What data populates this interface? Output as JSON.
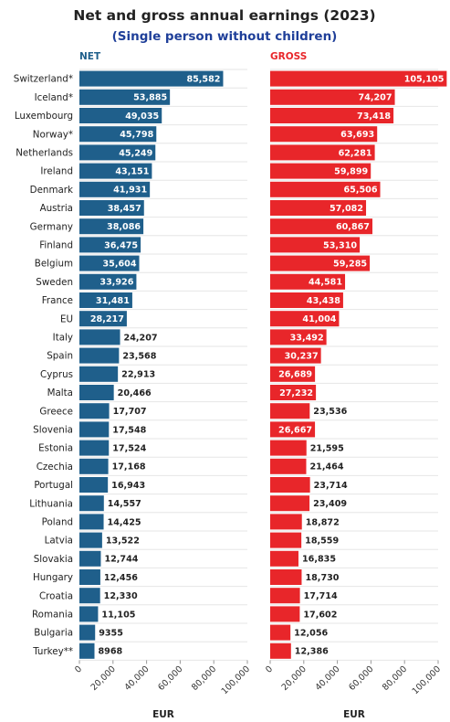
{
  "title": "Net and gross annual earnings (2023)",
  "subtitle": "(Single person without children)",
  "colors": {
    "net": "#1f5f8b",
    "gross": "#e8262a",
    "title": "#222222",
    "subtitle": "#1f3f99"
  },
  "chart_data": {
    "type": "bar",
    "orientation": "horizontal",
    "categories": [
      "Switzerland*",
      "Iceland*",
      "Luxembourg",
      "Norway*",
      "Netherlands",
      "Ireland",
      "Denmark",
      "Austria",
      "Germany",
      "Finland",
      "Belgium",
      "Sweden",
      "France",
      "EU",
      "Italy",
      "Spain",
      "Cyprus",
      "Malta",
      "Greece",
      "Slovenia",
      "Estonia",
      "Czechia",
      "Portugal",
      "Lithuania",
      "Poland",
      "Latvia",
      "Slovakia",
      "Hungary",
      "Croatia",
      "Romania",
      "Bulgaria",
      "Turkey**"
    ],
    "series": [
      {
        "name": "NET",
        "values": [
          85582,
          53885,
          49035,
          45798,
          45249,
          43151,
          41931,
          38457,
          38086,
          36475,
          35604,
          33926,
          31481,
          28217,
          24207,
          23568,
          22913,
          20466,
          17707,
          17548,
          17524,
          17168,
          16943,
          14557,
          14425,
          13522,
          12744,
          12456,
          12330,
          11105,
          9355,
          8968
        ],
        "labels": [
          "85,582",
          "53,885",
          "49,035",
          "45,798",
          "45,249",
          "43,151",
          "41,931",
          "38,457",
          "38,086",
          "36,475",
          "35,604",
          "33,926",
          "31,481",
          "28,217",
          "24,207",
          "23,568",
          "22,913",
          "20,466",
          "17,707",
          "17,548",
          "17,524",
          "17,168",
          "16,943",
          "14,557",
          "14,425",
          "13,522",
          "12,744",
          "12,456",
          "12,330",
          "11,105",
          "9355",
          "8968"
        ]
      },
      {
        "name": "GROSS",
        "values": [
          105105,
          74207,
          73418,
          63693,
          62281,
          59899,
          65506,
          57082,
          60867,
          53310,
          59285,
          44581,
          43438,
          41004,
          33492,
          30237,
          26689,
          27232,
          23536,
          26667,
          21595,
          21464,
          23714,
          23409,
          18872,
          18559,
          16835,
          18730,
          17714,
          17602,
          12056,
          12386
        ],
        "labels": [
          "105,105",
          "74,207",
          "73,418",
          "63,693",
          "62,281",
          "59,899",
          "65,506",
          "57,082",
          "60,867",
          "53,310",
          "59,285",
          "44,581",
          "43,438",
          "41,004",
          "33,492",
          "30,237",
          "26,689",
          "27,232",
          "23,536",
          "26,667",
          "21,595",
          "21,464",
          "23,714",
          "23,409",
          "18,872",
          "18,559",
          "16,835",
          "18,730",
          "17,714",
          "17,602",
          "12,056",
          "12,386"
        ]
      }
    ],
    "xlim": [
      0,
      100000
    ],
    "xticks": [
      0,
      20000,
      40000,
      60000,
      80000,
      100000
    ],
    "xtick_labels": [
      "0",
      "20,000",
      "40,000",
      "60,000",
      "80,000",
      "100,000"
    ],
    "xlabel": "EUR",
    "grid": true
  }
}
